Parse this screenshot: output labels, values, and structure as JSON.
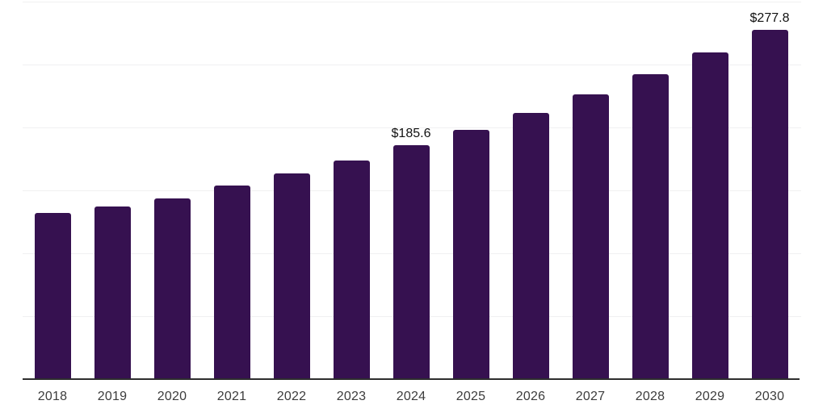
{
  "chart_data": {
    "type": "bar",
    "title": "",
    "xlabel": "",
    "ylabel": "",
    "categories": [
      "2018",
      "2019",
      "2020",
      "2021",
      "2022",
      "2023",
      "2024",
      "2025",
      "2026",
      "2027",
      "2028",
      "2029",
      "2030"
    ],
    "values": [
      132.0,
      137.4,
      143.7,
      153.6,
      163.4,
      173.5,
      185.6,
      198.0,
      211.8,
      226.0,
      242.1,
      259.5,
      277.8
    ],
    "data_labels": {
      "2024": "$185.6",
      "2030": "$277.8"
    },
    "value_prefix": "$",
    "ylim": [
      0,
      300
    ],
    "gridline_step": 50,
    "grid": "horizontal-only",
    "legend": "none",
    "colors": {
      "bar": "#361150",
      "axis": "#2e2e2e",
      "gridline": "#f0f0f1",
      "tick_label": "#3c3c3c",
      "data_label": "#111111",
      "background": "#ffffff"
    }
  }
}
